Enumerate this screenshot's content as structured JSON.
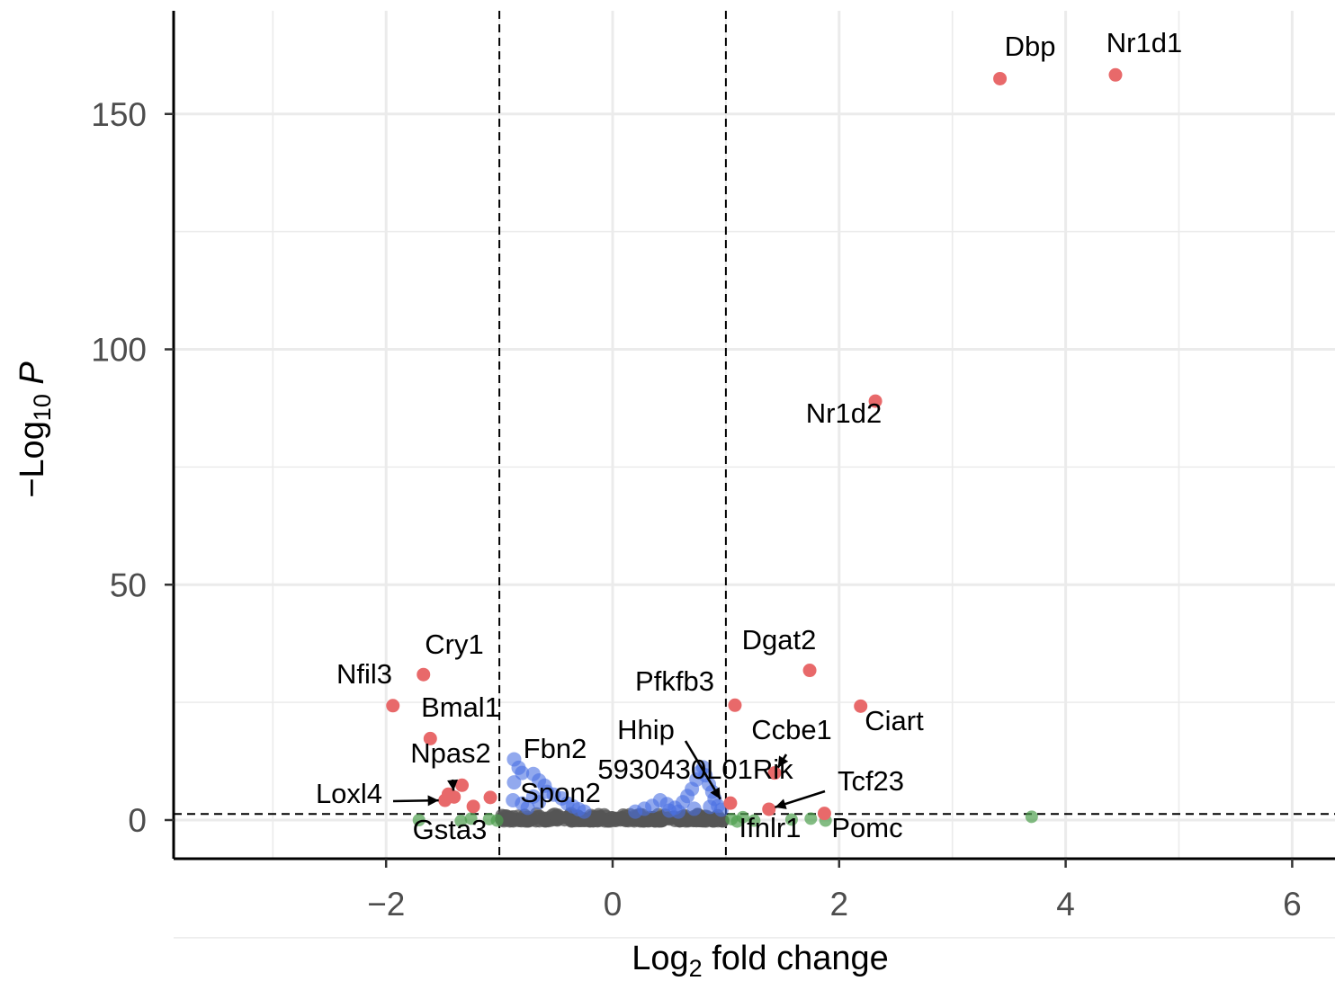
{
  "chart_data": {
    "type": "scatter",
    "subtype": "volcano",
    "title": "",
    "xlabel": "Log2 fold change",
    "ylabel": "-Log10 P",
    "xlim": [
      -3.9,
      6.4
    ],
    "ylim": [
      -8.5,
      171
    ],
    "x_ticks": [
      -2,
      0,
      2,
      4,
      6
    ],
    "x_tick_labels": [
      "−2",
      "0",
      "2",
      "4",
      "6"
    ],
    "y_ticks": [
      0,
      50,
      100,
      150
    ],
    "y_tick_labels": [
      "0",
      "50",
      "100",
      "150"
    ],
    "grid": true,
    "fc_cutoff": [
      -1,
      1
    ],
    "p_cutoff_line": 1.3,
    "colors": {
      "significant": "#e8696a",
      "p_only": "#4a6fe3",
      "fc_only": "#4e9f4e",
      "ns": "#555555",
      "grid": "#ebebeb",
      "axis": "#000000"
    },
    "labeled_genes": [
      {
        "name": "Dbp",
        "x": 3.42,
        "y": 157.5
      },
      {
        "name": "Nr1d1",
        "x": 4.44,
        "y": 158.3
      },
      {
        "name": "Nr1d2",
        "x": 2.32,
        "y": 89.0
      },
      {
        "name": "Cry1",
        "x": -1.67,
        "y": 30.9
      },
      {
        "name": "Nfil3",
        "x": -1.94,
        "y": 24.3
      },
      {
        "name": "Bmal1",
        "x": -1.61,
        "y": 17.3
      },
      {
        "name": "Npas2",
        "x": -1.4,
        "y": 4.9
      },
      {
        "name": "Fbn2",
        "x": -0.87,
        "y": 12.9
      },
      {
        "name": "Loxl4",
        "x": -1.48,
        "y": 4.2
      },
      {
        "name": "Spon2",
        "x": -1.08,
        "y": 4.8
      },
      {
        "name": "Gsta3",
        "x": -1.33,
        "y": -0.5
      },
      {
        "name": "Dgat2",
        "x": 1.74,
        "y": 31.8
      },
      {
        "name": "Pfkfb3",
        "x": 1.08,
        "y": 24.4
      },
      {
        "name": "Ciart",
        "x": 2.19,
        "y": 24.2
      },
      {
        "name": "Hhip",
        "x": 0.98,
        "y": 3.3
      },
      {
        "name": "Ccbe1",
        "x": 1.43,
        "y": 10.0
      },
      {
        "name": "5930430L01Rik",
        "x": 1.04,
        "y": 3.6
      },
      {
        "name": "Tcf23",
        "x": 1.38,
        "y": 2.3
      },
      {
        "name": "Ifnlr1",
        "x": 1.09,
        "y": 0.5
      },
      {
        "name": "Pomc",
        "x": 1.87,
        "y": 1.4
      }
    ],
    "points": {
      "significant": [
        [
          3.42,
          157.5
        ],
        [
          4.44,
          158.3
        ],
        [
          2.32,
          89.0
        ],
        [
          -1.67,
          30.9
        ],
        [
          -1.94,
          24.3
        ],
        [
          -1.61,
          17.3
        ],
        [
          1.74,
          31.8
        ],
        [
          1.08,
          24.4
        ],
        [
          2.19,
          24.2
        ],
        [
          1.43,
          10.0
        ],
        [
          -1.4,
          4.9
        ],
        [
          -1.48,
          4.2
        ],
        [
          -1.33,
          7.4
        ],
        [
          -1.08,
          4.8
        ],
        [
          -1.23,
          2.9
        ],
        [
          1.04,
          3.6
        ],
        [
          1.38,
          2.3
        ],
        [
          1.87,
          1.4
        ],
        [
          -1.45,
          5.5
        ]
      ],
      "p_only": [
        [
          -0.87,
          12.9
        ],
        [
          -0.83,
          11.1
        ],
        [
          -0.8,
          10.0
        ],
        [
          -0.87,
          8.0
        ],
        [
          -0.7,
          9.8
        ],
        [
          -0.65,
          8.4
        ],
        [
          -0.6,
          7.3
        ],
        [
          -0.58,
          6.0
        ],
        [
          -0.52,
          5.4
        ],
        [
          -0.45,
          4.6
        ],
        [
          -0.4,
          3.5
        ],
        [
          -0.35,
          2.9
        ],
        [
          -0.3,
          2.3
        ],
        [
          -0.25,
          1.8
        ],
        [
          -0.88,
          4.2
        ],
        [
          -0.8,
          3.5
        ],
        [
          -0.75,
          2.6
        ],
        [
          -0.7,
          5.0
        ],
        [
          -0.65,
          3.8
        ],
        [
          0.2,
          1.8
        ],
        [
          0.28,
          2.4
        ],
        [
          0.35,
          3.0
        ],
        [
          0.42,
          4.2
        ],
        [
          0.48,
          3.4
        ],
        [
          0.55,
          2.6
        ],
        [
          0.62,
          3.8
        ],
        [
          0.66,
          5.1
        ],
        [
          0.7,
          6.6
        ],
        [
          0.74,
          8.6
        ],
        [
          0.77,
          10.2
        ],
        [
          0.8,
          11.2
        ],
        [
          0.82,
          9.5
        ],
        [
          0.85,
          7.6
        ],
        [
          0.88,
          6.0
        ],
        [
          0.9,
          4.5
        ],
        [
          0.93,
          3.0
        ],
        [
          0.96,
          2.2
        ],
        [
          0.58,
          1.8
        ],
        [
          0.5,
          2.0
        ],
        [
          0.72,
          2.4
        ],
        [
          0.86,
          2.8
        ]
      ],
      "fc_only": [
        [
          -1.71,
          0.0
        ],
        [
          -1.34,
          -0.2
        ],
        [
          -1.09,
          0.2
        ],
        [
          -1.02,
          -0.1
        ],
        [
          1.05,
          0.2
        ],
        [
          1.15,
          0.6
        ],
        [
          1.25,
          -0.1
        ],
        [
          1.58,
          0.1
        ],
        [
          1.75,
          0.3
        ],
        [
          1.88,
          -0.1
        ],
        [
          3.7,
          0.7
        ],
        [
          1.1,
          -0.3
        ],
        [
          -1.25,
          0.3
        ]
      ]
    }
  }
}
